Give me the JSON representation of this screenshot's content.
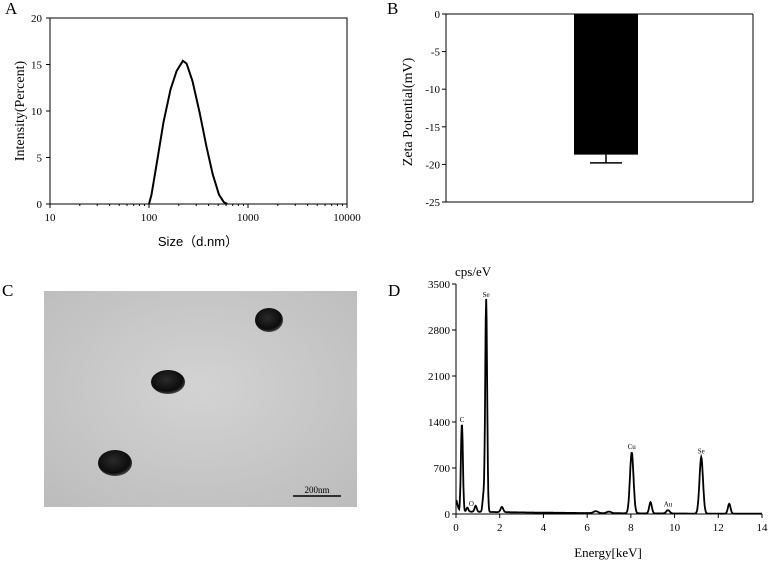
{
  "panels": {
    "A": "A",
    "B": "B",
    "C": "C",
    "D": "D"
  },
  "colors": {
    "line": "#000000",
    "bar": "#000000",
    "tem_background": "#c9c9c9",
    "particle": "#111111"
  },
  "chart_data": [
    {
      "id": "A",
      "type": "line",
      "xscale": "log",
      "xlabel": "Size（d.nm）",
      "ylabel": "Intensity(Percent)",
      "xlim": [
        10,
        10000
      ],
      "ylim": [
        0,
        20
      ],
      "xticks": [
        "10",
        "100",
        "1000",
        "10000"
      ],
      "yticks": [
        "0",
        "5",
        "10",
        "15",
        "20"
      ],
      "series": [
        {
          "x": [
            100,
            106,
            120,
            140,
            165,
            190,
            220,
            240,
            275,
            325,
            380,
            440,
            510,
            570,
            620
          ],
          "y": [
            0,
            1.0,
            4.4,
            8.8,
            12.3,
            14.3,
            15.4,
            15.1,
            13.2,
            9.8,
            6.2,
            3.2,
            1.0,
            0.2,
            0
          ]
        }
      ]
    },
    {
      "id": "B",
      "type": "bar",
      "ylabel": "Zeta Potential(mV)",
      "ylim": [
        -25,
        0
      ],
      "yticks": [
        "0",
        "-5",
        "-10",
        "-15",
        "-20",
        "-25"
      ],
      "values": [
        -18.7
      ],
      "error": [
        1.1
      ]
    },
    {
      "id": "D",
      "type": "line",
      "unit_label": "cps/eV",
      "xlabel": "Energy[keV]",
      "xlim": [
        0,
        14
      ],
      "ylim": [
        0,
        3500
      ],
      "xticks": [
        "0",
        "2",
        "4",
        "6",
        "8",
        "10",
        "12",
        "14"
      ],
      "yticks": [
        "0",
        "700",
        "1400",
        "2100",
        "2800",
        "3500"
      ],
      "peaks": [
        {
          "label": "C",
          "x": 0.27,
          "y": 1340
        },
        {
          "label": "O",
          "x": 0.52,
          "y": 60
        },
        {
          "label": "Se",
          "x": 1.38,
          "y": 3240
        },
        {
          "label": "Cu",
          "x": 8.04,
          "y": 930
        },
        {
          "label": "Au",
          "x": 9.7,
          "y": 50
        },
        {
          "label": "Se",
          "x": 11.22,
          "y": 860
        }
      ]
    }
  ],
  "tem": {
    "scale_bar_label": "200nm"
  }
}
